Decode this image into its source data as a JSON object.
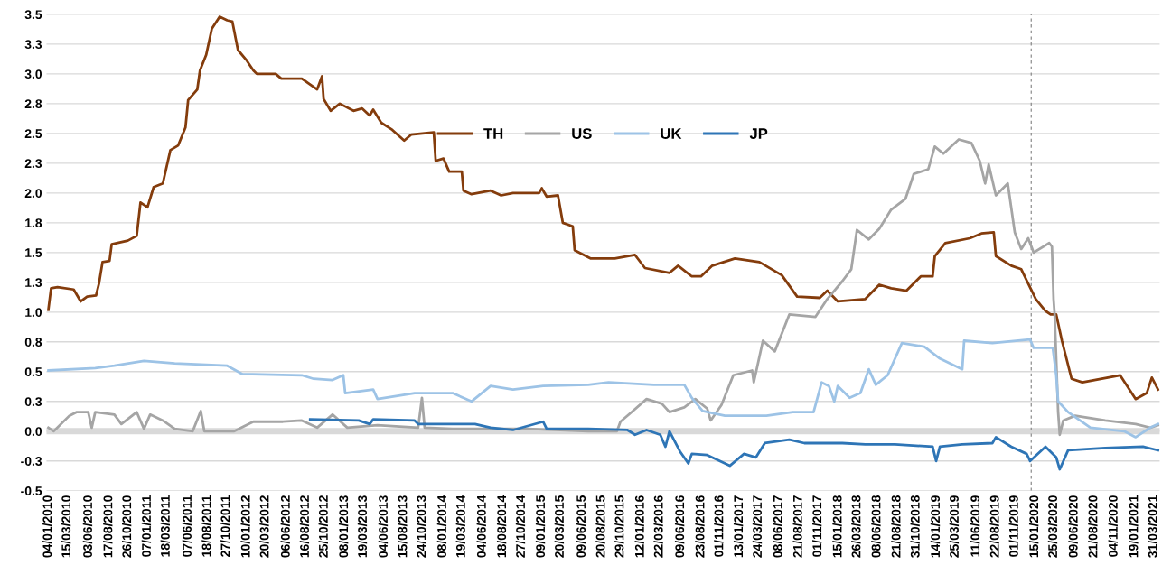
{
  "chart_data": {
    "type": "line",
    "xlim": [
      "2009-12-28",
      "2021-04-22"
    ],
    "xticks": [
      {
        "value": "2010-01-04",
        "label": "04/01/2010"
      },
      {
        "value": "2010-03-15",
        "label": "15/03/2010"
      },
      {
        "value": "2010-06-03",
        "label": "03/06/2010"
      },
      {
        "value": "2010-08-17",
        "label": "17/08/2010"
      },
      {
        "value": "2010-10-26",
        "label": "26/10/2010"
      },
      {
        "value": "2011-01-07",
        "label": "07/01/2011"
      },
      {
        "value": "2011-03-18",
        "label": "18/03/2011"
      },
      {
        "value": "2011-06-07",
        "label": "07/06/2011"
      },
      {
        "value": "2011-08-18",
        "label": "18/08/2011"
      },
      {
        "value": "2011-10-27",
        "label": "27/10/2011"
      },
      {
        "value": "2012-01-10",
        "label": "10/01/2012"
      },
      {
        "value": "2012-03-20",
        "label": "20/03/2012"
      },
      {
        "value": "2012-06-06",
        "label": "06/06/2012"
      },
      {
        "value": "2012-08-16",
        "label": "16/08/2012"
      },
      {
        "value": "2012-10-25",
        "label": "25/10/2012"
      },
      {
        "value": "2013-01-08",
        "label": "08/01/2013"
      },
      {
        "value": "2013-03-19",
        "label": "19/03/2013"
      },
      {
        "value": "2013-06-04",
        "label": "04/06/2013"
      },
      {
        "value": "2013-08-15",
        "label": "15/08/2013"
      },
      {
        "value": "2013-10-24",
        "label": "24/10/2013"
      },
      {
        "value": "2014-01-08",
        "label": "08/01/2014"
      },
      {
        "value": "2014-03-19",
        "label": "19/03/2014"
      },
      {
        "value": "2014-06-04",
        "label": "04/06/2014"
      },
      {
        "value": "2014-08-18",
        "label": "18/08/2014"
      },
      {
        "value": "2014-10-27",
        "label": "27/10/2014"
      },
      {
        "value": "2015-01-09",
        "label": "09/01/2015"
      },
      {
        "value": "2015-03-20",
        "label": "20/03/2015"
      },
      {
        "value": "2015-06-09",
        "label": "09/06/2015"
      },
      {
        "value": "2015-08-20",
        "label": "20/08/2015"
      },
      {
        "value": "2015-10-29",
        "label": "29/10/2015"
      },
      {
        "value": "2016-01-12",
        "label": "12/01/2016"
      },
      {
        "value": "2016-03-22",
        "label": "22/03/2016"
      },
      {
        "value": "2016-06-09",
        "label": "09/06/2016"
      },
      {
        "value": "2016-08-23",
        "label": "23/08/2016"
      },
      {
        "value": "2016-11-01",
        "label": "01/11/2016"
      },
      {
        "value": "2017-01-13",
        "label": "13/01/2017"
      },
      {
        "value": "2017-03-24",
        "label": "24/03/2017"
      },
      {
        "value": "2017-06-08",
        "label": "08/06/2017"
      },
      {
        "value": "2017-08-21",
        "label": "21/08/2017"
      },
      {
        "value": "2017-11-01",
        "label": "01/11/2017"
      },
      {
        "value": "2018-01-15",
        "label": "15/01/2018"
      },
      {
        "value": "2018-03-26",
        "label": "26/03/2018"
      },
      {
        "value": "2018-06-08",
        "label": "08/06/2018"
      },
      {
        "value": "2018-08-21",
        "label": "21/08/2018"
      },
      {
        "value": "2018-10-31",
        "label": "31/10/2018"
      },
      {
        "value": "2019-01-14",
        "label": "14/01/2019"
      },
      {
        "value": "2019-03-25",
        "label": "25/03/2019"
      },
      {
        "value": "2019-06-11",
        "label": "11/06/2019"
      },
      {
        "value": "2019-08-22",
        "label": "22/08/2019"
      },
      {
        "value": "2019-11-01",
        "label": "01/11/2019"
      },
      {
        "value": "2020-01-15",
        "label": "15/01/2020"
      },
      {
        "value": "2020-03-25",
        "label": "25/03/2020"
      },
      {
        "value": "2020-06-09",
        "label": "09/06/2020"
      },
      {
        "value": "2020-08-21",
        "label": "21/08/2020"
      },
      {
        "value": "2020-11-04",
        "label": "04/11/2020"
      },
      {
        "value": "2021-01-19",
        "label": "19/01/2021"
      },
      {
        "value": "2021-03-31",
        "label": "31/03/2021"
      }
    ],
    "ylim": [
      -0.5,
      3.5
    ],
    "yticks": [
      {
        "value": -0.5,
        "label": "-0.5"
      },
      {
        "value": -0.25,
        "label": "-0.3"
      },
      {
        "value": 0,
        "label": "0.0"
      },
      {
        "value": 0.25,
        "label": "0.3"
      },
      {
        "value": 0.5,
        "label": "0.5"
      },
      {
        "value": 0.75,
        "label": "0.8"
      },
      {
        "value": 1.0,
        "label": "1.0"
      },
      {
        "value": 1.25,
        "label": "1.3"
      },
      {
        "value": 1.5,
        "label": "1.5"
      },
      {
        "value": 1.75,
        "label": "1.8"
      },
      {
        "value": 2.0,
        "label": "2.0"
      },
      {
        "value": 2.25,
        "label": "2.3"
      },
      {
        "value": 2.5,
        "label": "2.5"
      },
      {
        "value": 2.75,
        "label": "2.8"
      },
      {
        "value": 3.0,
        "label": "3.0"
      },
      {
        "value": 3.25,
        "label": "3.3"
      },
      {
        "value": 3.5,
        "label": "3.5"
      }
    ],
    "grid": "y",
    "legend": "top",
    "ref_lines": [
      {
        "axis": "y",
        "value": 0,
        "color": "#d9d9d9",
        "line_style": "solid"
      },
      {
        "axis": "x",
        "value": "2020-01-01",
        "color": "#808080",
        "line_style": "dashed"
      }
    ],
    "series": [
      {
        "name": "TH",
        "color": "#843c0c",
        "x": [
          "2010-01-04",
          "2010-01-14",
          "2010-02-07",
          "2010-04-08",
          "2010-05-04",
          "2010-05-28",
          "2010-06-30",
          "2010-07-11",
          "2010-07-24",
          "2010-08-19",
          "2010-08-27",
          "2010-10-26",
          "2010-11-28",
          "2010-12-12",
          "2011-01-07",
          "2011-01-30",
          "2011-03-05",
          "2011-04-02",
          "2011-05-01",
          "2011-05-28",
          "2011-06-07",
          "2011-07-11",
          "2011-07-21",
          "2011-08-13",
          "2011-09-03",
          "2011-10-02",
          "2011-10-30",
          "2011-11-18",
          "2011-12-09",
          "2012-01-08",
          "2012-02-04",
          "2012-02-17",
          "2012-04-27",
          "2012-05-18",
          "2012-08-02",
          "2012-09-28",
          "2012-10-16",
          "2012-10-22",
          "2012-11-17",
          "2012-12-21",
          "2013-02-10",
          "2013-03-14",
          "2013-04-11",
          "2013-04-24",
          "2013-05-24",
          "2013-07-04",
          "2013-08-17",
          "2013-09-12",
          "2013-12-05",
          "2013-12-12",
          "2014-01-10",
          "2014-01-31",
          "2014-03-19",
          "2014-03-25",
          "2014-04-24",
          "2014-07-04",
          "2014-08-12",
          "2014-09-25",
          "2014-12-31",
          "2015-01-10",
          "2015-01-28",
          "2015-03-11",
          "2015-03-29",
          "2015-05-05",
          "2015-05-12",
          "2015-07-11",
          "2015-10-08",
          "2015-12-22",
          "2016-01-28",
          "2016-04-28",
          "2016-05-30",
          "2016-07-20",
          "2016-08-23",
          "2016-10-04",
          "2016-12-27",
          "2017-03-28",
          "2017-06-19",
          "2017-08-15",
          "2017-11-07",
          "2017-12-05",
          "2018-01-13",
          "2018-04-25",
          "2018-06-16",
          "2018-07-30",
          "2018-09-25",
          "2018-11-17",
          "2018-12-31",
          "2019-01-08",
          "2019-02-16",
          "2019-05-18",
          "2019-06-30",
          "2019-08-15",
          "2019-08-23",
          "2019-10-19",
          "2019-11-25",
          "2020-01-18",
          "2020-02-23",
          "2020-03-13",
          "2020-04-03",
          "2020-04-24",
          "2020-05-30",
          "2020-07-09",
          "2020-11-26",
          "2021-01-23",
          "2021-03-05",
          "2021-03-24",
          "2021-04-16"
        ],
        "values": [
          1.02,
          1.2,
          1.21,
          1.19,
          1.09,
          1.13,
          1.14,
          1.24,
          1.42,
          1.43,
          1.57,
          1.6,
          1.64,
          1.92,
          1.88,
          2.05,
          2.08,
          2.36,
          2.4,
          2.55,
          2.78,
          2.87,
          3.03,
          3.16,
          3.38,
          3.48,
          3.45,
          3.44,
          3.2,
          3.12,
          3.03,
          3.0,
          3.0,
          2.96,
          2.96,
          2.87,
          2.98,
          2.79,
          2.69,
          2.75,
          2.69,
          2.71,
          2.65,
          2.7,
          2.59,
          2.53,
          2.44,
          2.49,
          2.51,
          2.27,
          2.29,
          2.18,
          2.18,
          2.02,
          1.99,
          2.02,
          1.98,
          2.0,
          2.0,
          2.04,
          1.97,
          1.98,
          1.75,
          1.72,
          1.52,
          1.45,
          1.45,
          1.48,
          1.37,
          1.33,
          1.39,
          1.3,
          1.3,
          1.39,
          1.45,
          1.42,
          1.31,
          1.13,
          1.12,
          1.18,
          1.09,
          1.11,
          1.23,
          1.2,
          1.18,
          1.3,
          1.3,
          1.47,
          1.58,
          1.62,
          1.66,
          1.67,
          1.47,
          1.39,
          1.36,
          1.11,
          1.01,
          0.98,
          0.98,
          0.76,
          0.44,
          0.41,
          0.47,
          0.27,
          0.32,
          0.45,
          0.35
        ]
      },
      {
        "name": "US",
        "color": "#a5a5a5",
        "x": [
          "2010-01-04",
          "2010-01-24",
          "2010-03-23",
          "2010-04-18",
          "2010-06-01",
          "2010-06-14",
          "2010-06-27",
          "2010-09-06",
          "2010-10-02",
          "2010-11-28",
          "2010-12-25",
          "2011-01-17",
          "2011-03-05",
          "2011-04-18",
          "2011-06-24",
          "2011-07-24",
          "2011-08-06",
          "2011-11-25",
          "2012-02-04",
          "2012-05-24",
          "2012-08-02",
          "2012-09-28",
          "2012-11-24",
          "2013-01-18",
          "2013-05-10",
          "2013-10-08",
          "2013-10-22",
          "2013-11-01",
          "2014-02-13",
          "2014-11-18",
          "2015-07-01",
          "2015-10-16",
          "2015-10-29",
          "2015-12-09",
          "2016-02-03",
          "2016-03-31",
          "2016-04-28",
          "2016-06-22",
          "2016-08-02",
          "2016-09-15",
          "2016-09-28",
          "2016-11-07",
          "2016-12-21",
          "2017-03-01",
          "2017-03-07",
          "2017-04-10",
          "2017-05-24",
          "2017-07-17",
          "2017-10-22",
          "2017-12-05",
          "2018-01-30",
          "2018-03-04",
          "2018-03-25",
          "2018-05-08",
          "2018-06-16",
          "2018-07-30",
          "2018-09-21",
          "2018-10-22",
          "2018-12-15",
          "2019-01-08",
          "2019-02-09",
          "2019-04-07",
          "2019-05-24",
          "2019-06-24",
          "2019-07-14",
          "2019-07-27",
          "2019-08-23",
          "2019-10-06",
          "2019-11-01",
          "2019-11-25",
          "2019-12-21",
          "2020-01-10",
          "2020-03-08",
          "2020-03-18",
          "2020-03-24",
          "2020-03-28",
          "2020-04-10",
          "2020-04-16",
          "2020-04-29",
          "2020-06-12",
          "2020-10-02",
          "2021-01-23",
          "2021-03-18",
          "2021-04-16"
        ],
        "values": [
          0.03,
          0.0,
          0.13,
          0.16,
          0.16,
          0.03,
          0.16,
          0.14,
          0.06,
          0.16,
          0.02,
          0.14,
          0.09,
          0.02,
          0.0,
          0.17,
          0.0,
          0.0,
          0.08,
          0.08,
          0.09,
          0.03,
          0.14,
          0.03,
          0.05,
          0.03,
          0.28,
          0.03,
          0.02,
          0.02,
          0.0,
          0.0,
          0.08,
          0.16,
          0.27,
          0.23,
          0.16,
          0.2,
          0.27,
          0.19,
          0.09,
          0.22,
          0.47,
          0.51,
          0.41,
          0.76,
          0.67,
          0.98,
          0.96,
          1.11,
          1.26,
          1.36,
          1.69,
          1.61,
          1.7,
          1.86,
          1.95,
          2.16,
          2.2,
          2.39,
          2.33,
          2.45,
          2.42,
          2.27,
          2.08,
          2.24,
          1.98,
          2.08,
          1.67,
          1.53,
          1.62,
          1.5,
          1.58,
          1.55,
          1.11,
          0.98,
          0.16,
          -0.03,
          0.09,
          0.13,
          0.09,
          0.06,
          0.03,
          0.05
        ]
      },
      {
        "name": "UK",
        "color": "#9dc3e6",
        "x": [
          "2010-01-04",
          "2010-06-27",
          "2010-09-06",
          "2010-12-25",
          "2011-04-18",
          "2011-10-30",
          "2011-12-25",
          "2012-08-02",
          "2012-09-15",
          "2012-11-24",
          "2013-01-03",
          "2013-01-10",
          "2013-04-24",
          "2013-05-10",
          "2013-09-25",
          "2014-02-13",
          "2014-04-24",
          "2014-07-04",
          "2014-09-25",
          "2015-01-15",
          "2015-07-01",
          "2015-09-15",
          "2016-03-01",
          "2016-06-22",
          "2016-07-20",
          "2016-08-29",
          "2016-11-20",
          "2017-04-23",
          "2017-07-30",
          "2017-10-15",
          "2017-11-14",
          "2017-12-11",
          "2017-12-31",
          "2018-01-13",
          "2018-02-26",
          "2018-04-07",
          "2018-05-08",
          "2018-06-03",
          "2018-07-17",
          "2018-09-08",
          "2018-11-30",
          "2019-01-27",
          "2019-04-20",
          "2019-04-27",
          "2019-08-10",
          "2019-12-28",
          "2020-01-10",
          "2020-03-21",
          "2020-04-03",
          "2020-04-10",
          "2020-05-17",
          "2020-08-08",
          "2020-12-11",
          "2021-01-23",
          "2021-03-18",
          "2021-04-16"
        ],
        "values": [
          0.51,
          0.53,
          0.55,
          0.59,
          0.57,
          0.55,
          0.48,
          0.47,
          0.44,
          0.43,
          0.47,
          0.32,
          0.35,
          0.27,
          0.32,
          0.32,
          0.25,
          0.38,
          0.35,
          0.38,
          0.39,
          0.41,
          0.39,
          0.39,
          0.28,
          0.17,
          0.13,
          0.13,
          0.16,
          0.16,
          0.41,
          0.38,
          0.25,
          0.38,
          0.28,
          0.32,
          0.52,
          0.39,
          0.47,
          0.74,
          0.71,
          0.61,
          0.52,
          0.76,
          0.74,
          0.77,
          0.7,
          0.7,
          0.47,
          0.25,
          0.16,
          0.03,
          0.0,
          -0.05,
          0.03,
          0.06
        ]
      },
      {
        "name": "JP",
        "color": "#2e75b6",
        "x": [
          "2012-09-02",
          "2013-03-01",
          "2013-04-11",
          "2013-04-24",
          "2013-09-25",
          "2013-10-08",
          "2014-02-13",
          "2014-05-07",
          "2014-07-04",
          "2014-09-25",
          "2015-01-15",
          "2015-01-28",
          "2015-07-01",
          "2015-11-24",
          "2015-12-22",
          "2016-02-03",
          "2016-03-25",
          "2016-04-13",
          "2016-04-28",
          "2016-06-06",
          "2016-07-07",
          "2016-07-20",
          "2016-09-15",
          "2016-12-08",
          "2017-01-30",
          "2017-03-15",
          "2017-04-17",
          "2017-07-17",
          "2017-09-11",
          "2018-01-30",
          "2018-04-25",
          "2018-08-13",
          "2018-12-31",
          "2019-01-13",
          "2019-01-27",
          "2019-04-20",
          "2019-08-10",
          "2019-08-23",
          "2019-10-19",
          "2019-12-15",
          "2019-12-28",
          "2020-02-23",
          "2020-04-03",
          "2020-04-16",
          "2020-05-17",
          "2020-10-02",
          "2021-02-19",
          "2021-04-16"
        ],
        "values": [
          0.1,
          0.09,
          0.06,
          0.1,
          0.09,
          0.06,
          0.06,
          0.06,
          0.03,
          0.01,
          0.08,
          0.02,
          0.02,
          0.01,
          -0.03,
          0.01,
          -0.03,
          -0.13,
          0.0,
          -0.17,
          -0.27,
          -0.19,
          -0.2,
          -0.29,
          -0.19,
          -0.22,
          -0.1,
          -0.07,
          -0.1,
          -0.1,
          -0.11,
          -0.11,
          -0.13,
          -0.25,
          -0.13,
          -0.11,
          -0.1,
          -0.05,
          -0.13,
          -0.19,
          -0.25,
          -0.13,
          -0.22,
          -0.32,
          -0.16,
          -0.14,
          -0.13,
          -0.16
        ]
      }
    ]
  }
}
